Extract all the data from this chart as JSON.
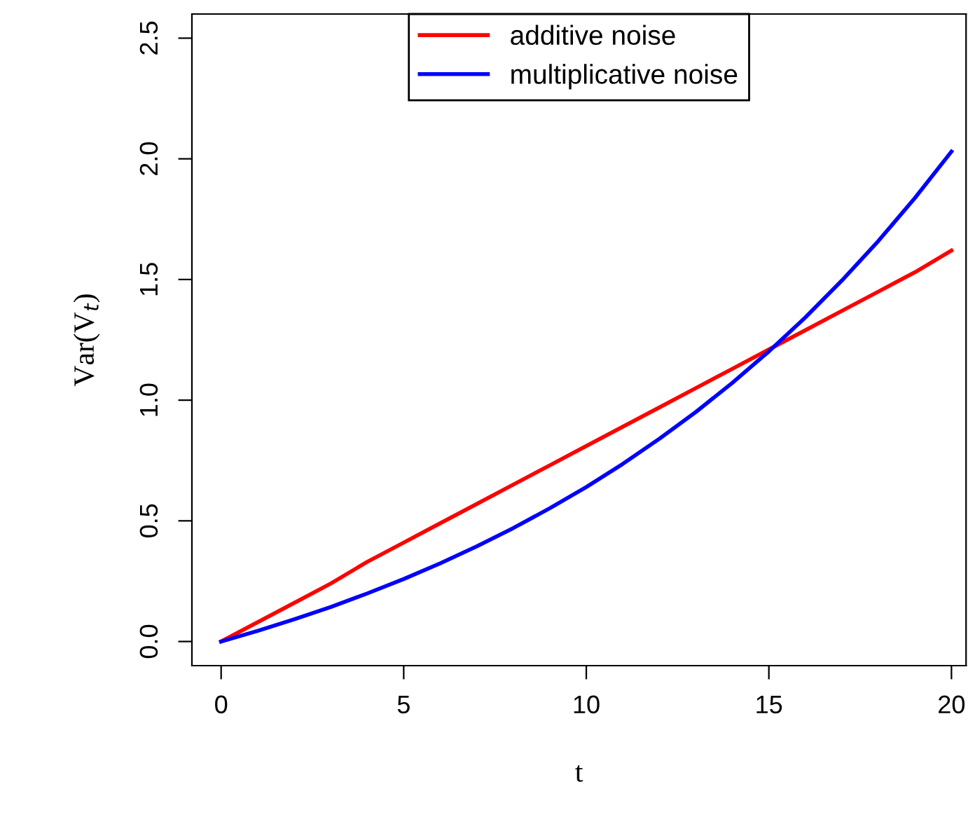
{
  "chart_data": {
    "type": "line",
    "xlabel": "t",
    "ylabel": "Var(V$_{t}$)",
    "x": [
      0,
      1,
      2,
      3,
      4,
      5,
      6,
      7,
      8,
      9,
      10,
      11,
      12,
      13,
      14,
      15,
      16,
      17,
      18,
      19,
      20
    ],
    "series": [
      {
        "name": "additive noise",
        "color": "#ff0000",
        "values": [
          0,
          0.08,
          0.16,
          0.24,
          0.33,
          0.41,
          0.49,
          0.57,
          0.65,
          0.73,
          0.81,
          0.89,
          0.97,
          1.05,
          1.13,
          1.21,
          1.29,
          1.37,
          1.45,
          1.53,
          1.62
        ]
      },
      {
        "name": "multiplicative noise",
        "color": "#0000ff",
        "values": [
          0,
          0.044,
          0.092,
          0.143,
          0.199,
          0.259,
          0.324,
          0.394,
          0.47,
          0.552,
          0.64,
          0.736,
          0.84,
          0.951,
          1.072,
          1.202,
          1.343,
          1.496,
          1.66,
          1.838,
          2.03
        ]
      }
    ],
    "xlim": [
      -0.8,
      20.4
    ],
    "ylim": [
      -0.1,
      2.6
    ],
    "xticks": [
      0,
      5,
      10,
      15,
      20
    ],
    "yticks": [
      {
        "value": 0,
        "label": "0.0"
      },
      0.5,
      {
        "value": 1,
        "label": "1.0"
      },
      1.5,
      {
        "value": 2,
        "label": "2.0"
      },
      2.5
    ],
    "grid": false,
    "legend": "top",
    "marker": "none",
    "line_style": "solid"
  }
}
